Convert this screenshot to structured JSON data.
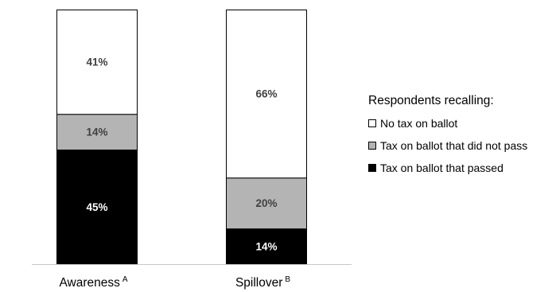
{
  "chart_data": {
    "type": "bar",
    "stacked": true,
    "normalized_percent": true,
    "categories": [
      "Awareness",
      "Spillover"
    ],
    "category_superscripts": [
      "A",
      "B"
    ],
    "series": [
      {
        "name": "Tax on ballot that passed",
        "values": [
          45,
          14
        ],
        "labels": [
          "45%",
          "14%"
        ],
        "color": "#000000",
        "label_color": "#ffffff"
      },
      {
        "name": "Tax on ballot that did not pass",
        "values": [
          14,
          20
        ],
        "labels": [
          "14%",
          "20%"
        ],
        "color": "#b4b4b4",
        "label_color": "#404040"
      },
      {
        "name": "No tax on ballot",
        "values": [
          41,
          66
        ],
        "labels": [
          "41%",
          "66%"
        ],
        "color": "#ffffff",
        "label_color": "#404040"
      }
    ],
    "ylim": [
      0,
      100
    ],
    "grid": false,
    "y_axis_shown": false,
    "legend": {
      "title": "Respondents recalling:",
      "placement": "right",
      "order": [
        "No tax on ballot",
        "Tax on ballot that did not pass",
        "Tax on ballot that passed"
      ]
    }
  }
}
